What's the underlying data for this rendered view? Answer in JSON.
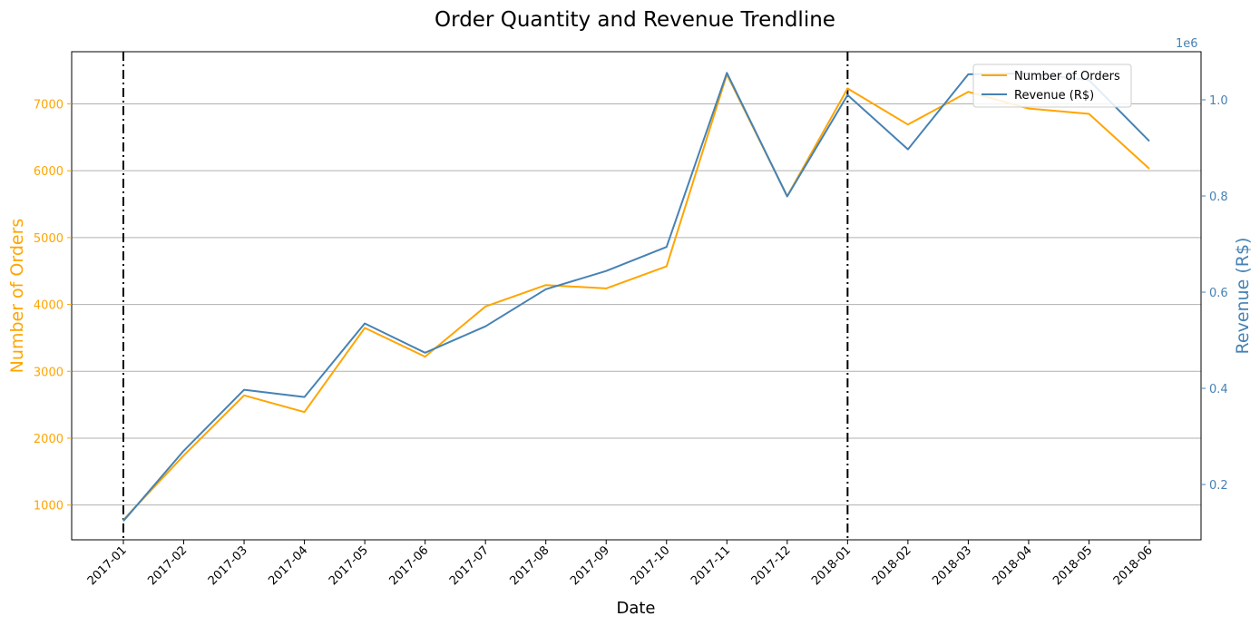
{
  "chart_data": {
    "type": "line",
    "title": "Order Quantity and Revenue Trendline",
    "xlabel": "Date",
    "ylabel_left": "Number of Orders",
    "ylabel_right": "Revenue (R$)",
    "right_axis_multiplier": "1e6",
    "categories": [
      "2017-01",
      "2017-02",
      "2017-03",
      "2017-04",
      "2017-05",
      "2017-06",
      "2017-07",
      "2017-08",
      "2017-09",
      "2017-10",
      "2017-11",
      "2017-12",
      "2018-01",
      "2018-02",
      "2018-03",
      "2018-04",
      "2018-05",
      "2018-06"
    ],
    "ylim_left": [
      480,
      7780
    ],
    "yticks_left": [
      1000,
      2000,
      3000,
      4000,
      5000,
      6000,
      7000
    ],
    "ylim_right": [
      0.085,
      1.1
    ],
    "yticks_right": [
      0.2,
      0.4,
      0.6,
      0.8,
      1.0
    ],
    "grid": "horizontal",
    "legend_position": "top-right",
    "vertical_markers": [
      "2017-01",
      "2018-01"
    ],
    "series": [
      {
        "name": "Number of Orders",
        "axis": "left",
        "color": "#FFA500",
        "values": [
          780,
          1740,
          2640,
          2390,
          3650,
          3220,
          3970,
          4290,
          4240,
          4570,
          7440,
          5620,
          7230,
          6690,
          7180,
          6930,
          6850,
          6030
        ]
      },
      {
        "name": "Revenue (R$)",
        "axis": "right",
        "color": "#4682B4",
        "values": [
          0.124,
          0.27,
          0.397,
          0.382,
          0.535,
          0.474,
          0.529,
          0.606,
          0.644,
          0.694,
          1.056,
          0.799,
          1.01,
          0.897,
          1.053,
          1.055,
          1.041,
          0.914
        ]
      }
    ]
  }
}
